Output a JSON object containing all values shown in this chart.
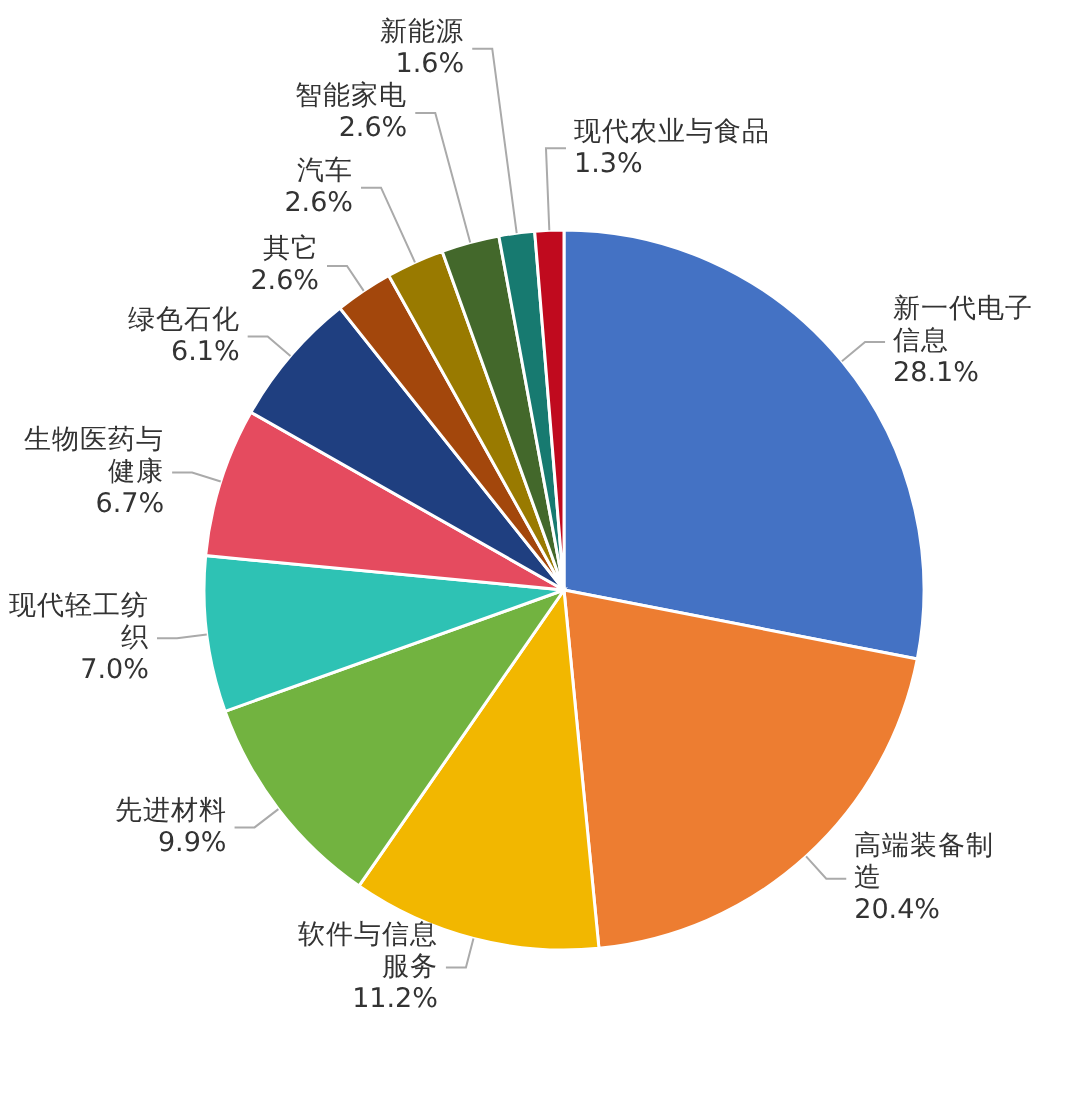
{
  "chart_data": {
    "type": "pie",
    "categories": [
      "新一代电子信息",
      "高端装备制造",
      "软件与信息服务",
      "先进材料",
      "现代轻工纺织",
      "生物医药与健康",
      "绿色石化",
      "其它",
      "汽车",
      "智能家电",
      "新能源",
      "现代农业与食品"
    ],
    "values": [
      28.1,
      20.4,
      11.2,
      9.9,
      7.0,
      6.7,
      6.1,
      2.6,
      2.6,
      2.6,
      1.6,
      1.3
    ],
    "value_labels": [
      "28.1%",
      "20.4%",
      "11.2%",
      "9.9%",
      "7.0%",
      "6.7%",
      "6.1%",
      "2.6%",
      "2.6%",
      "2.6%",
      "1.6%",
      "1.3%"
    ],
    "colors": [
      "#4472c4",
      "#ed7d31",
      "#f2b700",
      "#72b340",
      "#2ec2b4",
      "#e54b5f",
      "#1f3f80",
      "#a3470c",
      "#997a00",
      "#43682b",
      "#177a70",
      "#c00a1e"
    ]
  }
}
